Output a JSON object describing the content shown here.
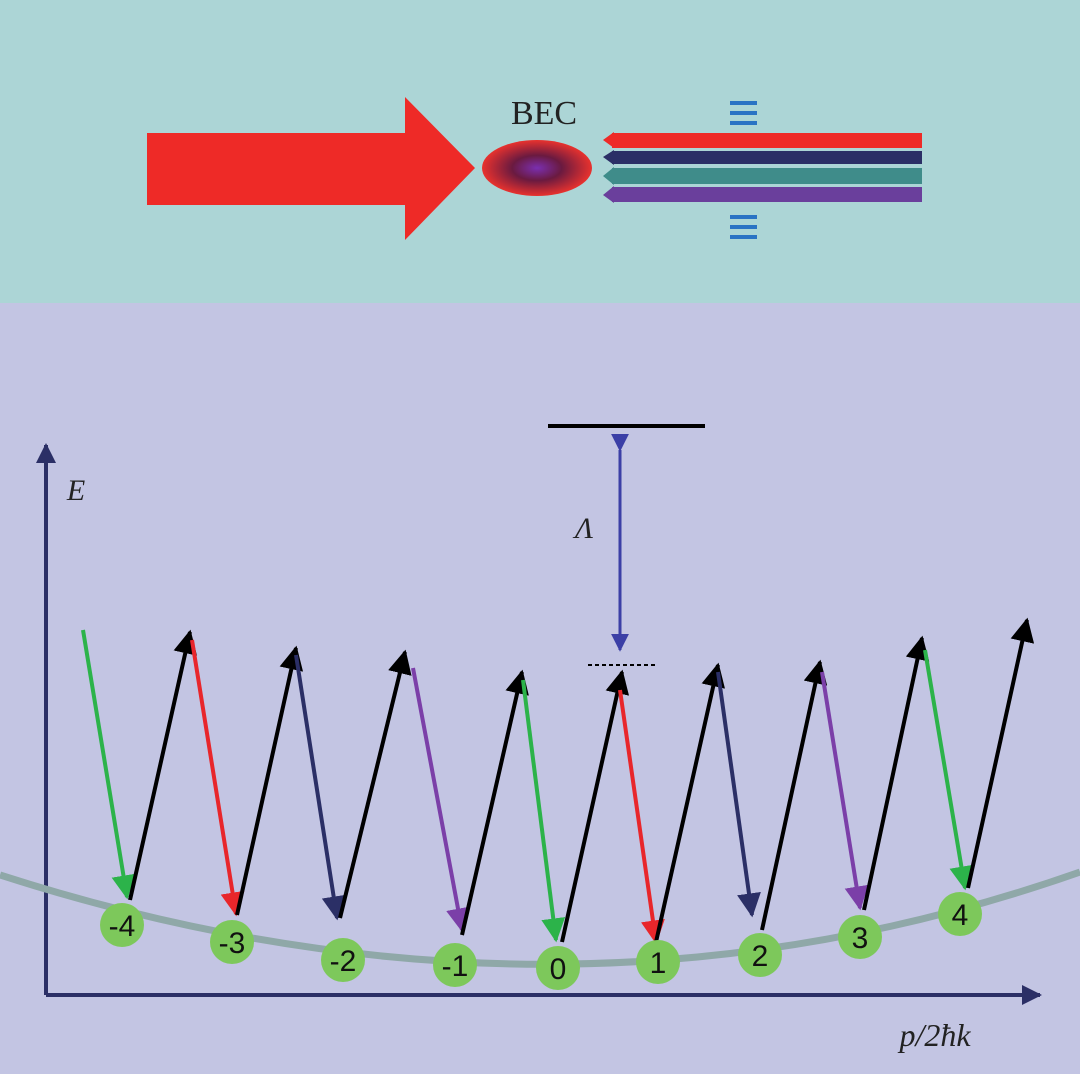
{
  "top_panel": {
    "label": "BEC"
  },
  "energy_diagram": {
    "y_axis_label": "E",
    "x_axis_label": "p/2ħk",
    "detuning_label": "Λ",
    "nodes": [
      {
        "label": "-4"
      },
      {
        "label": "-3"
      },
      {
        "label": "-2"
      },
      {
        "label": "-1"
      },
      {
        "label": "0"
      },
      {
        "label": "1"
      },
      {
        "label": "2"
      },
      {
        "label": "3"
      },
      {
        "label": "4"
      }
    ]
  }
}
